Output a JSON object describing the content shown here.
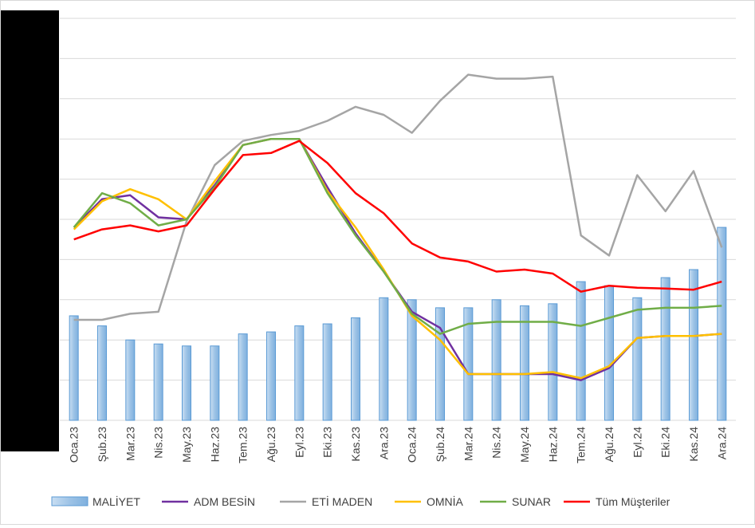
{
  "chart_data": {
    "type": "bar+line",
    "title": "",
    "xlabel": "",
    "ylabel": "",
    "ylim": [
      0,
      10
    ],
    "grid": true,
    "legend_position": "bottom",
    "categories": [
      "Oca.23",
      "Şub.23",
      "Mar.23",
      "Nis.23",
      "May.23",
      "Haz.23",
      "Tem.23",
      "Ağu.23",
      "Eyl.23",
      "Eki.23",
      "Kas.23",
      "Ara.23",
      "Oca.24",
      "Şub.24",
      "Mar.24",
      "Nis.24",
      "May.24",
      "Haz.24",
      "Tem.24",
      "Ağu.24",
      "Eyl.24",
      "Eki.24",
      "Kas.24",
      "Ara.24"
    ],
    "bar_series": {
      "name": "MALİYET",
      "color": "#9DC3E6",
      "values": [
        2.6,
        2.35,
        2.0,
        1.9,
        1.85,
        1.85,
        2.15,
        2.2,
        2.35,
        2.4,
        2.55,
        3.05,
        3.0,
        2.8,
        2.8,
        3.0,
        2.85,
        2.9,
        3.45,
        3.35,
        3.05,
        3.55,
        3.75,
        4.8
      ]
    },
    "line_series": [
      {
        "name": "ADM BESİN",
        "color": "#7030A0",
        "values": [
          4.8,
          5.5,
          5.6,
          5.05,
          5.0,
          5.85,
          6.85,
          7.0,
          7.0,
          5.8,
          4.65,
          3.7,
          2.7,
          2.3,
          1.15,
          1.15,
          1.15,
          1.15,
          1.0,
          1.3,
          2.05,
          2.1,
          2.1,
          2.15
        ]
      },
      {
        "name": "ETİ MADEN",
        "color": "#A5A5A5",
        "values": [
          2.5,
          2.5,
          2.65,
          2.7,
          4.95,
          6.35,
          6.95,
          7.1,
          7.2,
          7.45,
          7.8,
          7.6,
          7.15,
          7.95,
          8.6,
          8.5,
          8.5,
          8.55,
          4.6,
          4.1,
          6.1,
          5.2,
          6.2,
          4.3
        ]
      },
      {
        "name": "OMNİA",
        "color": "#FFC000",
        "values": [
          4.75,
          5.45,
          5.75,
          5.5,
          5.0,
          5.95,
          6.85,
          7.0,
          7.0,
          5.7,
          4.8,
          3.75,
          2.6,
          2.0,
          1.15,
          1.15,
          1.15,
          1.2,
          1.05,
          1.35,
          2.05,
          2.1,
          2.1,
          2.15
        ]
      },
      {
        "name": "SUNAR",
        "color": "#70AD47",
        "values": [
          4.8,
          5.65,
          5.4,
          4.85,
          5.0,
          5.8,
          6.85,
          7.0,
          7.0,
          5.65,
          4.6,
          3.7,
          2.65,
          2.15,
          2.4,
          2.45,
          2.45,
          2.45,
          2.35,
          2.55,
          2.75,
          2.8,
          2.8,
          2.85
        ]
      },
      {
        "name": "Tüm Müşteriler",
        "color": "#FF0000",
        "values": [
          4.5,
          4.75,
          4.85,
          4.7,
          4.85,
          5.75,
          6.6,
          6.65,
          6.95,
          6.4,
          5.65,
          5.15,
          4.4,
          4.05,
          3.95,
          3.7,
          3.75,
          3.65,
          3.2,
          3.35,
          3.3,
          3.28,
          3.25,
          3.45
        ]
      }
    ]
  }
}
